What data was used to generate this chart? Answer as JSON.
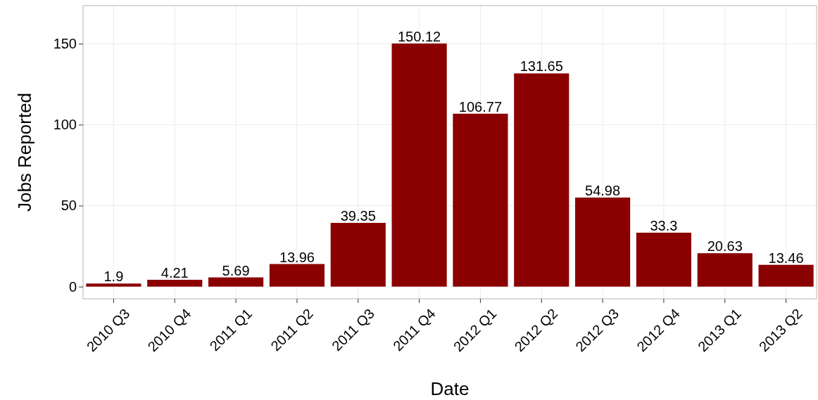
{
  "chart_data": {
    "type": "bar",
    "xlabel": "Date",
    "ylabel": "Jobs Reported",
    "categories": [
      "2010 Q3",
      "2010 Q4",
      "2011 Q1",
      "2011 Q2",
      "2011 Q3",
      "2011 Q4",
      "2012 Q1",
      "2012 Q2",
      "2012 Q3",
      "2012 Q4",
      "2013 Q1",
      "2013 Q2"
    ],
    "values": [
      1.9,
      4.21,
      5.69,
      13.96,
      39.35,
      150.12,
      106.77,
      131.65,
      54.98,
      33.3,
      20.63,
      13.46
    ],
    "color": "#8b0000",
    "ylim": [
      -7.5,
      173.5
    ],
    "yticks": [
      0,
      50,
      100,
      150
    ],
    "grid": true,
    "data_labels": true
  }
}
